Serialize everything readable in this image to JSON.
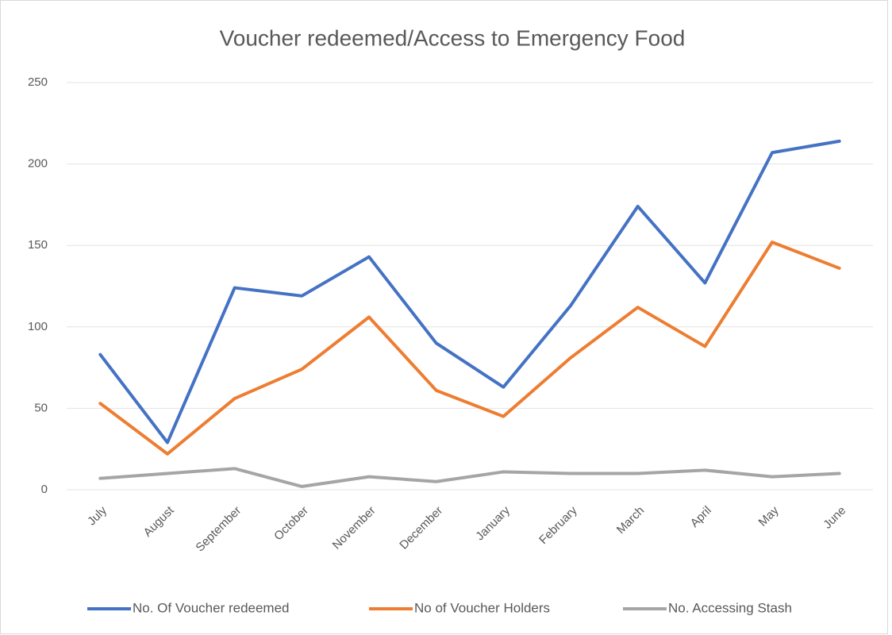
{
  "chart_data": {
    "type": "line",
    "title": "Voucher redeemed/Access to Emergency Food",
    "categories": [
      "July",
      "August",
      "September",
      "October",
      "November",
      "December",
      "January",
      "February",
      "March",
      "April",
      "May",
      "June"
    ],
    "series": [
      {
        "name": "No. Of Voucher redeemed",
        "color": "#4472c4",
        "values": [
          83,
          29,
          124,
          119,
          143,
          90,
          63,
          113,
          174,
          127,
          207,
          214
        ]
      },
      {
        "name": "No of Voucher Holders",
        "color": "#ed7d31",
        "values": [
          53,
          22,
          56,
          74,
          106,
          61,
          45,
          81,
          112,
          88,
          152,
          136
        ]
      },
      {
        "name": "No. Accessing Stash",
        "color": "#a5a5a5",
        "values": [
          7,
          10,
          13,
          2,
          8,
          5,
          11,
          10,
          10,
          12,
          8,
          10
        ]
      }
    ],
    "ylim": [
      0,
      250
    ],
    "yticks": [
      0,
      50,
      100,
      150,
      200,
      250
    ],
    "grid": true,
    "legend": "bottom"
  }
}
